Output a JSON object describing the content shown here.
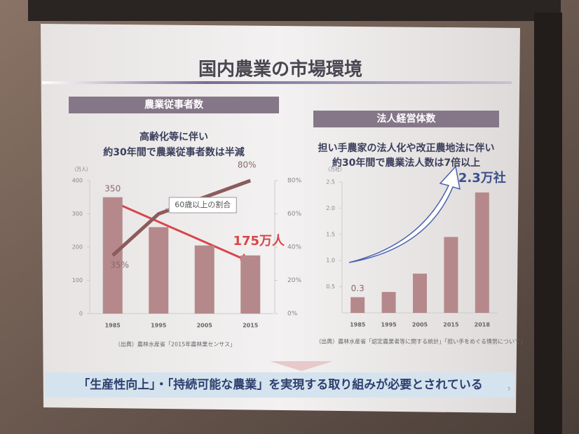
{
  "slide": {
    "title": "国内農業の市場環境",
    "conclusion": "「生産性向上」・「持続可能な農業」を実現する取り組みが必要とされている",
    "page": "3"
  },
  "chart_data": [
    {
      "type": "bar",
      "title": "農業従事者数",
      "subtitle": [
        "高齢化等に伴い",
        "約30年間で農業従事者数は半減"
      ],
      "y_unit": "（万人）",
      "categories": [
        "1985",
        "1995",
        "2005",
        "2015"
      ],
      "series": [
        {
          "type": "bar",
          "color": "#b5898b",
          "values": [
            350,
            260,
            205,
            175
          ],
          "value_labels": [
            "350",
            null,
            null,
            "175万人"
          ]
        },
        {
          "type": "line",
          "name": "60歳以上の割合",
          "axis": "y2",
          "color": "#8c5b5c",
          "values": [
            35,
            60,
            70,
            80
          ],
          "value_labels": [
            "35%",
            null,
            null,
            "80%"
          ]
        }
      ],
      "ylim": [
        0,
        400
      ],
      "yticks": [
        0,
        100,
        200,
        300,
        400
      ],
      "y2lim": [
        0,
        80
      ],
      "y2ticks": [
        {
          "value": 0,
          "label": "0%"
        },
        {
          "value": 20,
          "label": "20%"
        },
        {
          "value": 40,
          "label": "40%"
        },
        {
          "value": 60,
          "label": "60%"
        },
        {
          "value": 80,
          "label": "80%"
        }
      ],
      "highlight_color": "#d8454a",
      "source": "（出典）農林水産省「2015年農林業センサス」"
    },
    {
      "type": "bar",
      "title": "法人経営体数",
      "subtitle": [
        "担い手農家の法人化や改正農地法に伴い",
        "約30年間で農業法人数は7倍以上"
      ],
      "y_unit": "（万社）",
      "categories": [
        "1985",
        "1995",
        "2005",
        "2015",
        "2018"
      ],
      "series": [
        {
          "type": "bar",
          "color": "#b5898b",
          "values": [
            0.3,
            0.4,
            0.75,
            1.45,
            2.3
          ],
          "value_labels": [
            "0.3",
            null,
            null,
            null,
            "2.3万社"
          ]
        }
      ],
      "ylim": [
        0,
        2.5
      ],
      "yticks": [
        0.5,
        {
          "value": 1,
          "label": "1.0"
        },
        1.5,
        {
          "value": 2,
          "label": "2.0"
        },
        2.5
      ],
      "highlight_color": "#3a4f8c",
      "source": "（出典）農林水産省「認定農業者等に関する統計」「担い手をめぐる情勢について」"
    }
  ]
}
